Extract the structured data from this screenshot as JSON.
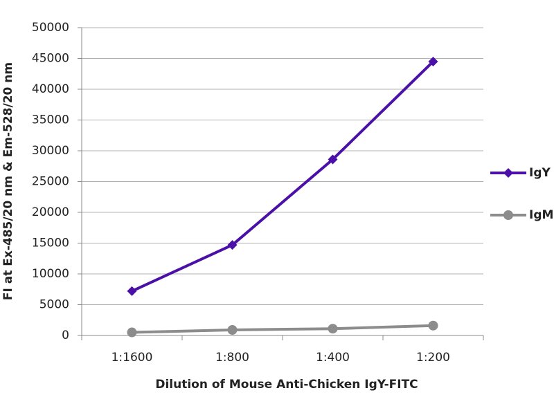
{
  "chart_data": {
    "type": "line",
    "x_label": "Dilution of Mouse Anti-Chicken IgY-FITC",
    "y_label": "FI at Ex-485/20 nm & Em-528/20 nm",
    "categories": [
      "1:1600",
      "1:800",
      "1:400",
      "1:200"
    ],
    "series": [
      {
        "name": "IgY",
        "color": "#4b10a8",
        "marker": "diamond",
        "values": [
          7200,
          14700,
          28600,
          44500
        ]
      },
      {
        "name": "IgM",
        "color": "#8c8c8c",
        "marker": "circle",
        "values": [
          500,
          900,
          1100,
          1600
        ]
      }
    ],
    "ylim": [
      0,
      50000
    ],
    "yticks": [
      0,
      5000,
      10000,
      15000,
      20000,
      25000,
      30000,
      35000,
      40000,
      45000,
      50000
    ],
    "grid": true,
    "legend": "right"
  }
}
